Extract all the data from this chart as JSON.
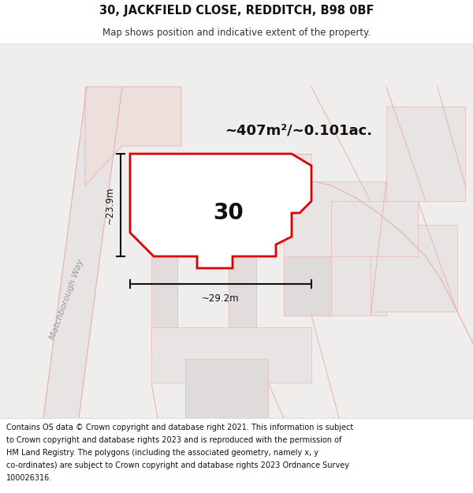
{
  "title": "30, JACKFIELD CLOSE, REDDITCH, B98 0BF",
  "subtitle": "Map shows position and indicative extent of the property.",
  "area_text": "~407m²/~0.101ac.",
  "number_label": "30",
  "dim_width": "~29.2m",
  "dim_height": "~23.9m",
  "street_label": "Matchborough Way",
  "footer_text": "Contains OS data © Crown copyright and database right 2021. This information is subject to Crown copyright and database rights 2023 and is reproduced with the permission of HM Land Registry. The polygons (including the associated geometry, namely x, y co-ordinates) are subject to Crown copyright and database rights 2023 Ordnance Survey 100026316.",
  "bg_color": "#f0eded",
  "map_bg": "#f0eded",
  "plot_fill": "#ffffff",
  "plot_stroke": "#dd0000",
  "road_color": "#e8d8d8",
  "dim_color": "#111111",
  "title_color": "#111111",
  "subtitle_color": "#333333",
  "gray_block": "#e0dada",
  "pink_line": "#e8b8b8",
  "road_fill": "#e8e0e0",
  "road_line": "#c8b0b0"
}
